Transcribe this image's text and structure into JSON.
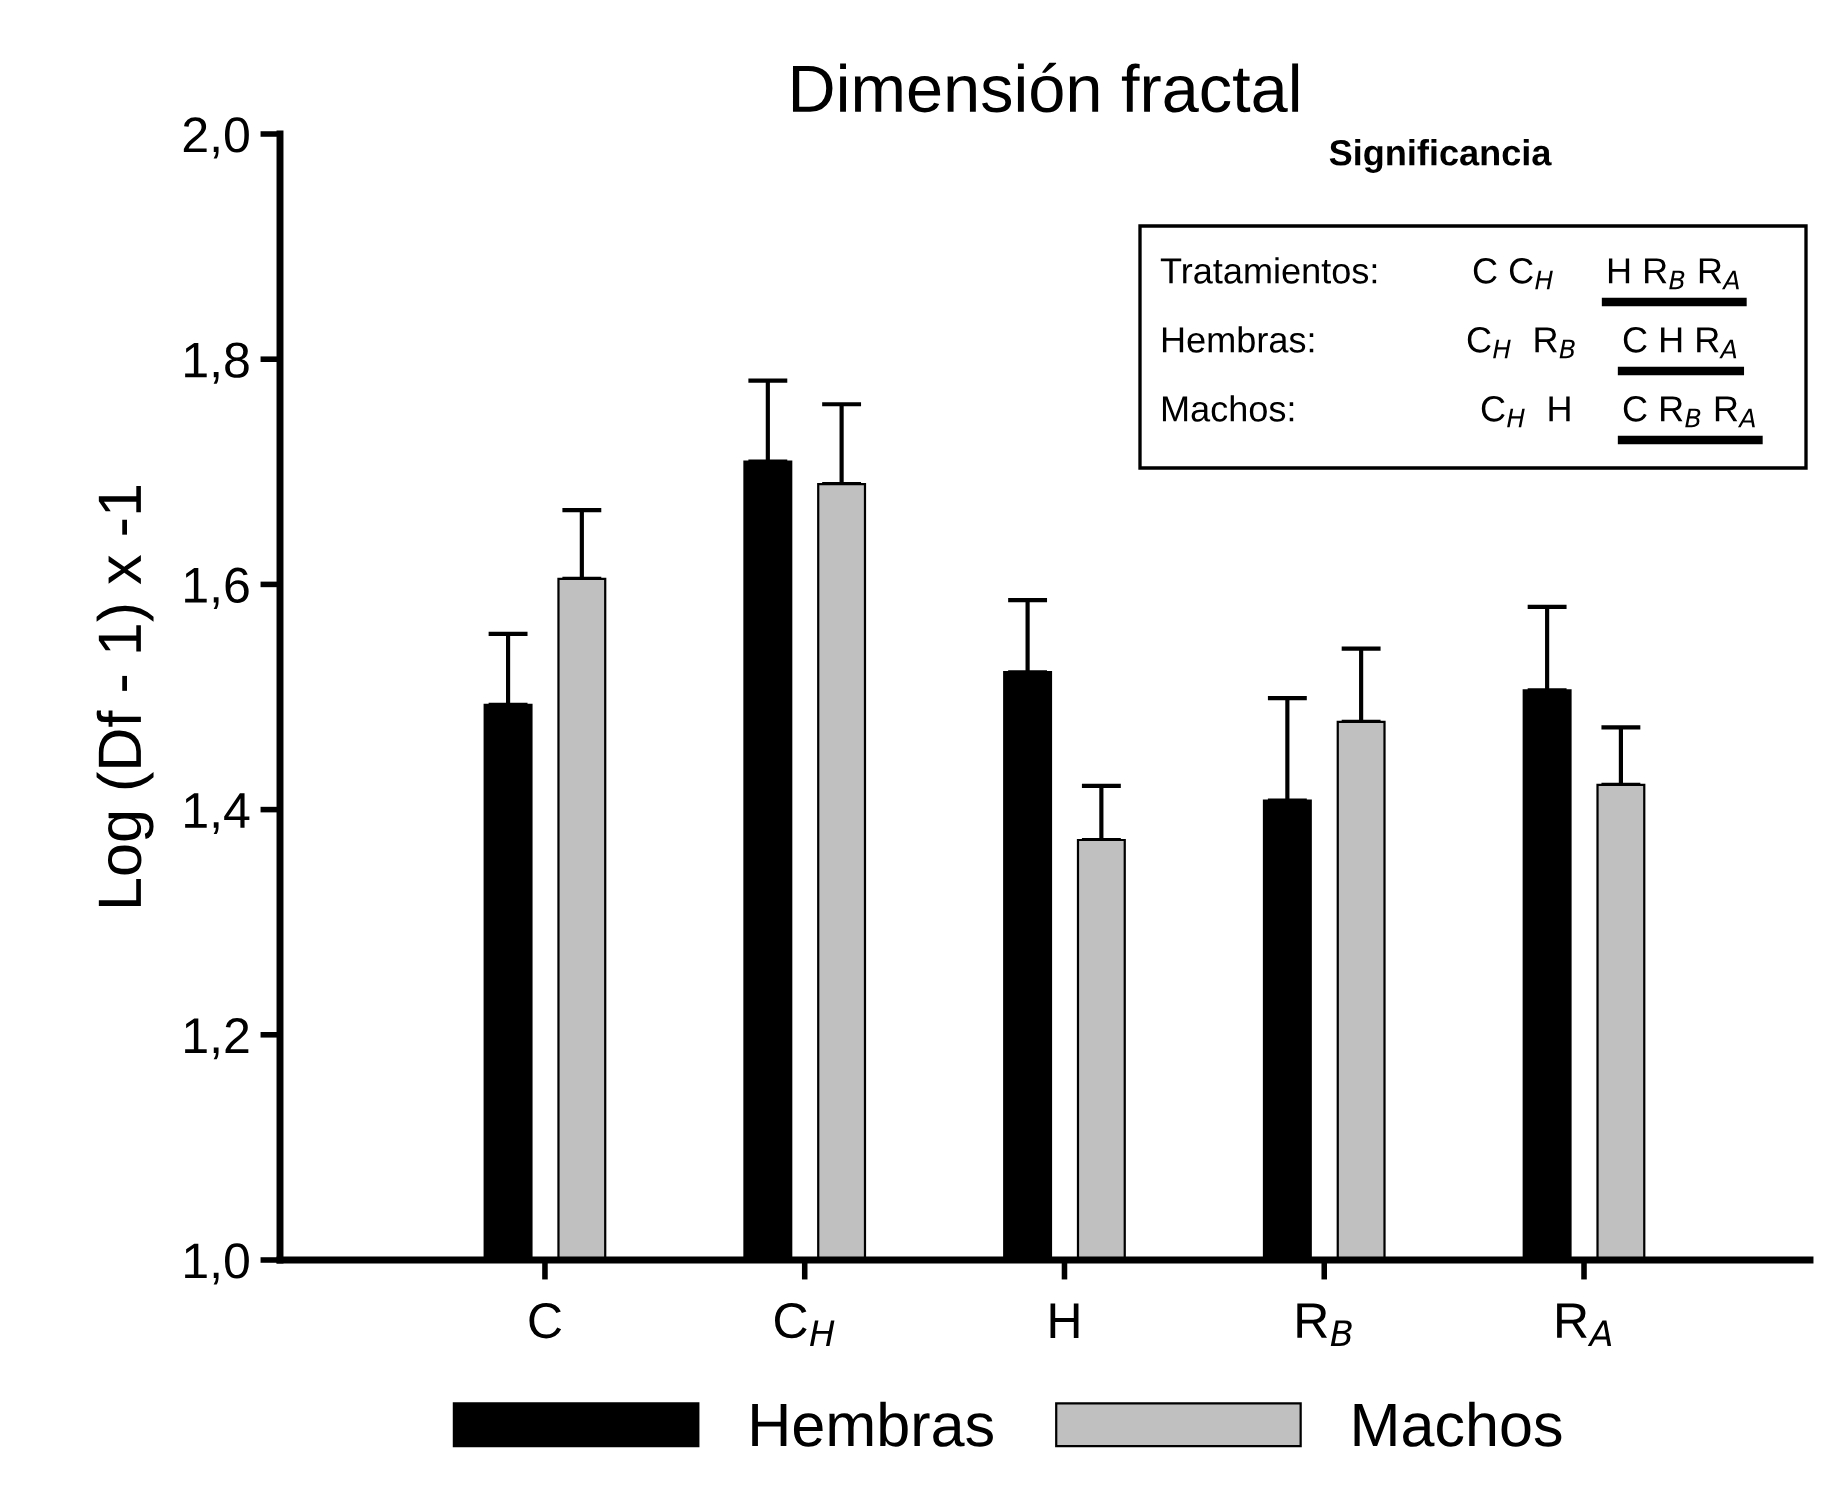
{
  "chart_data": {
    "type": "bar",
    "title": "Dimensión fractal",
    "ylabel": "Log (Df - 1) x -1",
    "categories": [
      "C",
      "C$_{H}$",
      "H",
      "R$_{B}$",
      "R$_{A}$"
    ],
    "series": [
      {
        "name": "Hembras",
        "color": "#000000",
        "values": [
          1.493,
          1.709,
          1.522,
          1.408,
          1.506
        ],
        "errors": [
          [
            1.493,
            1.556
          ],
          [
            1.709,
            1.781
          ],
          [
            1.522,
            1.586
          ],
          [
            1.408,
            1.499
          ],
          [
            1.506,
            1.58
          ]
        ]
      },
      {
        "name": "Machos",
        "color": "#c0c0c0",
        "values": [
          1.605,
          1.689,
          1.373,
          1.478,
          1.422
        ],
        "errors": [
          [
            1.605,
            1.666
          ],
          [
            1.689,
            1.76
          ],
          [
            1.373,
            1.421
          ],
          [
            1.478,
            1.543
          ],
          [
            1.422,
            1.473
          ]
        ]
      }
    ],
    "ylim": [
      1.0,
      2.0
    ],
    "yticks": [
      {
        "value": 1.0,
        "label": "1,0"
      },
      {
        "value": 1.2,
        "label": "1,2"
      },
      {
        "value": 1.4,
        "label": "1,4"
      },
      {
        "value": 1.6,
        "label": "1,6"
      },
      {
        "value": 1.8,
        "label": "1,8"
      },
      {
        "value": 2.0,
        "label": "2,0"
      }
    ],
    "legend": "bottom",
    "grid": false,
    "annotations": [
      "Significancia",
      "Tratamientos:",
      "C C$_{H}$",
      "H R$_{B}$ R$_{A}$",
      "Hembras:",
      "C$_{H}$  R$_{B}$",
      "C H R$_{A}$",
      "Machos:",
      "C$_{H}$  H",
      "C R$_{B}$ R$_{A}$"
    ]
  }
}
